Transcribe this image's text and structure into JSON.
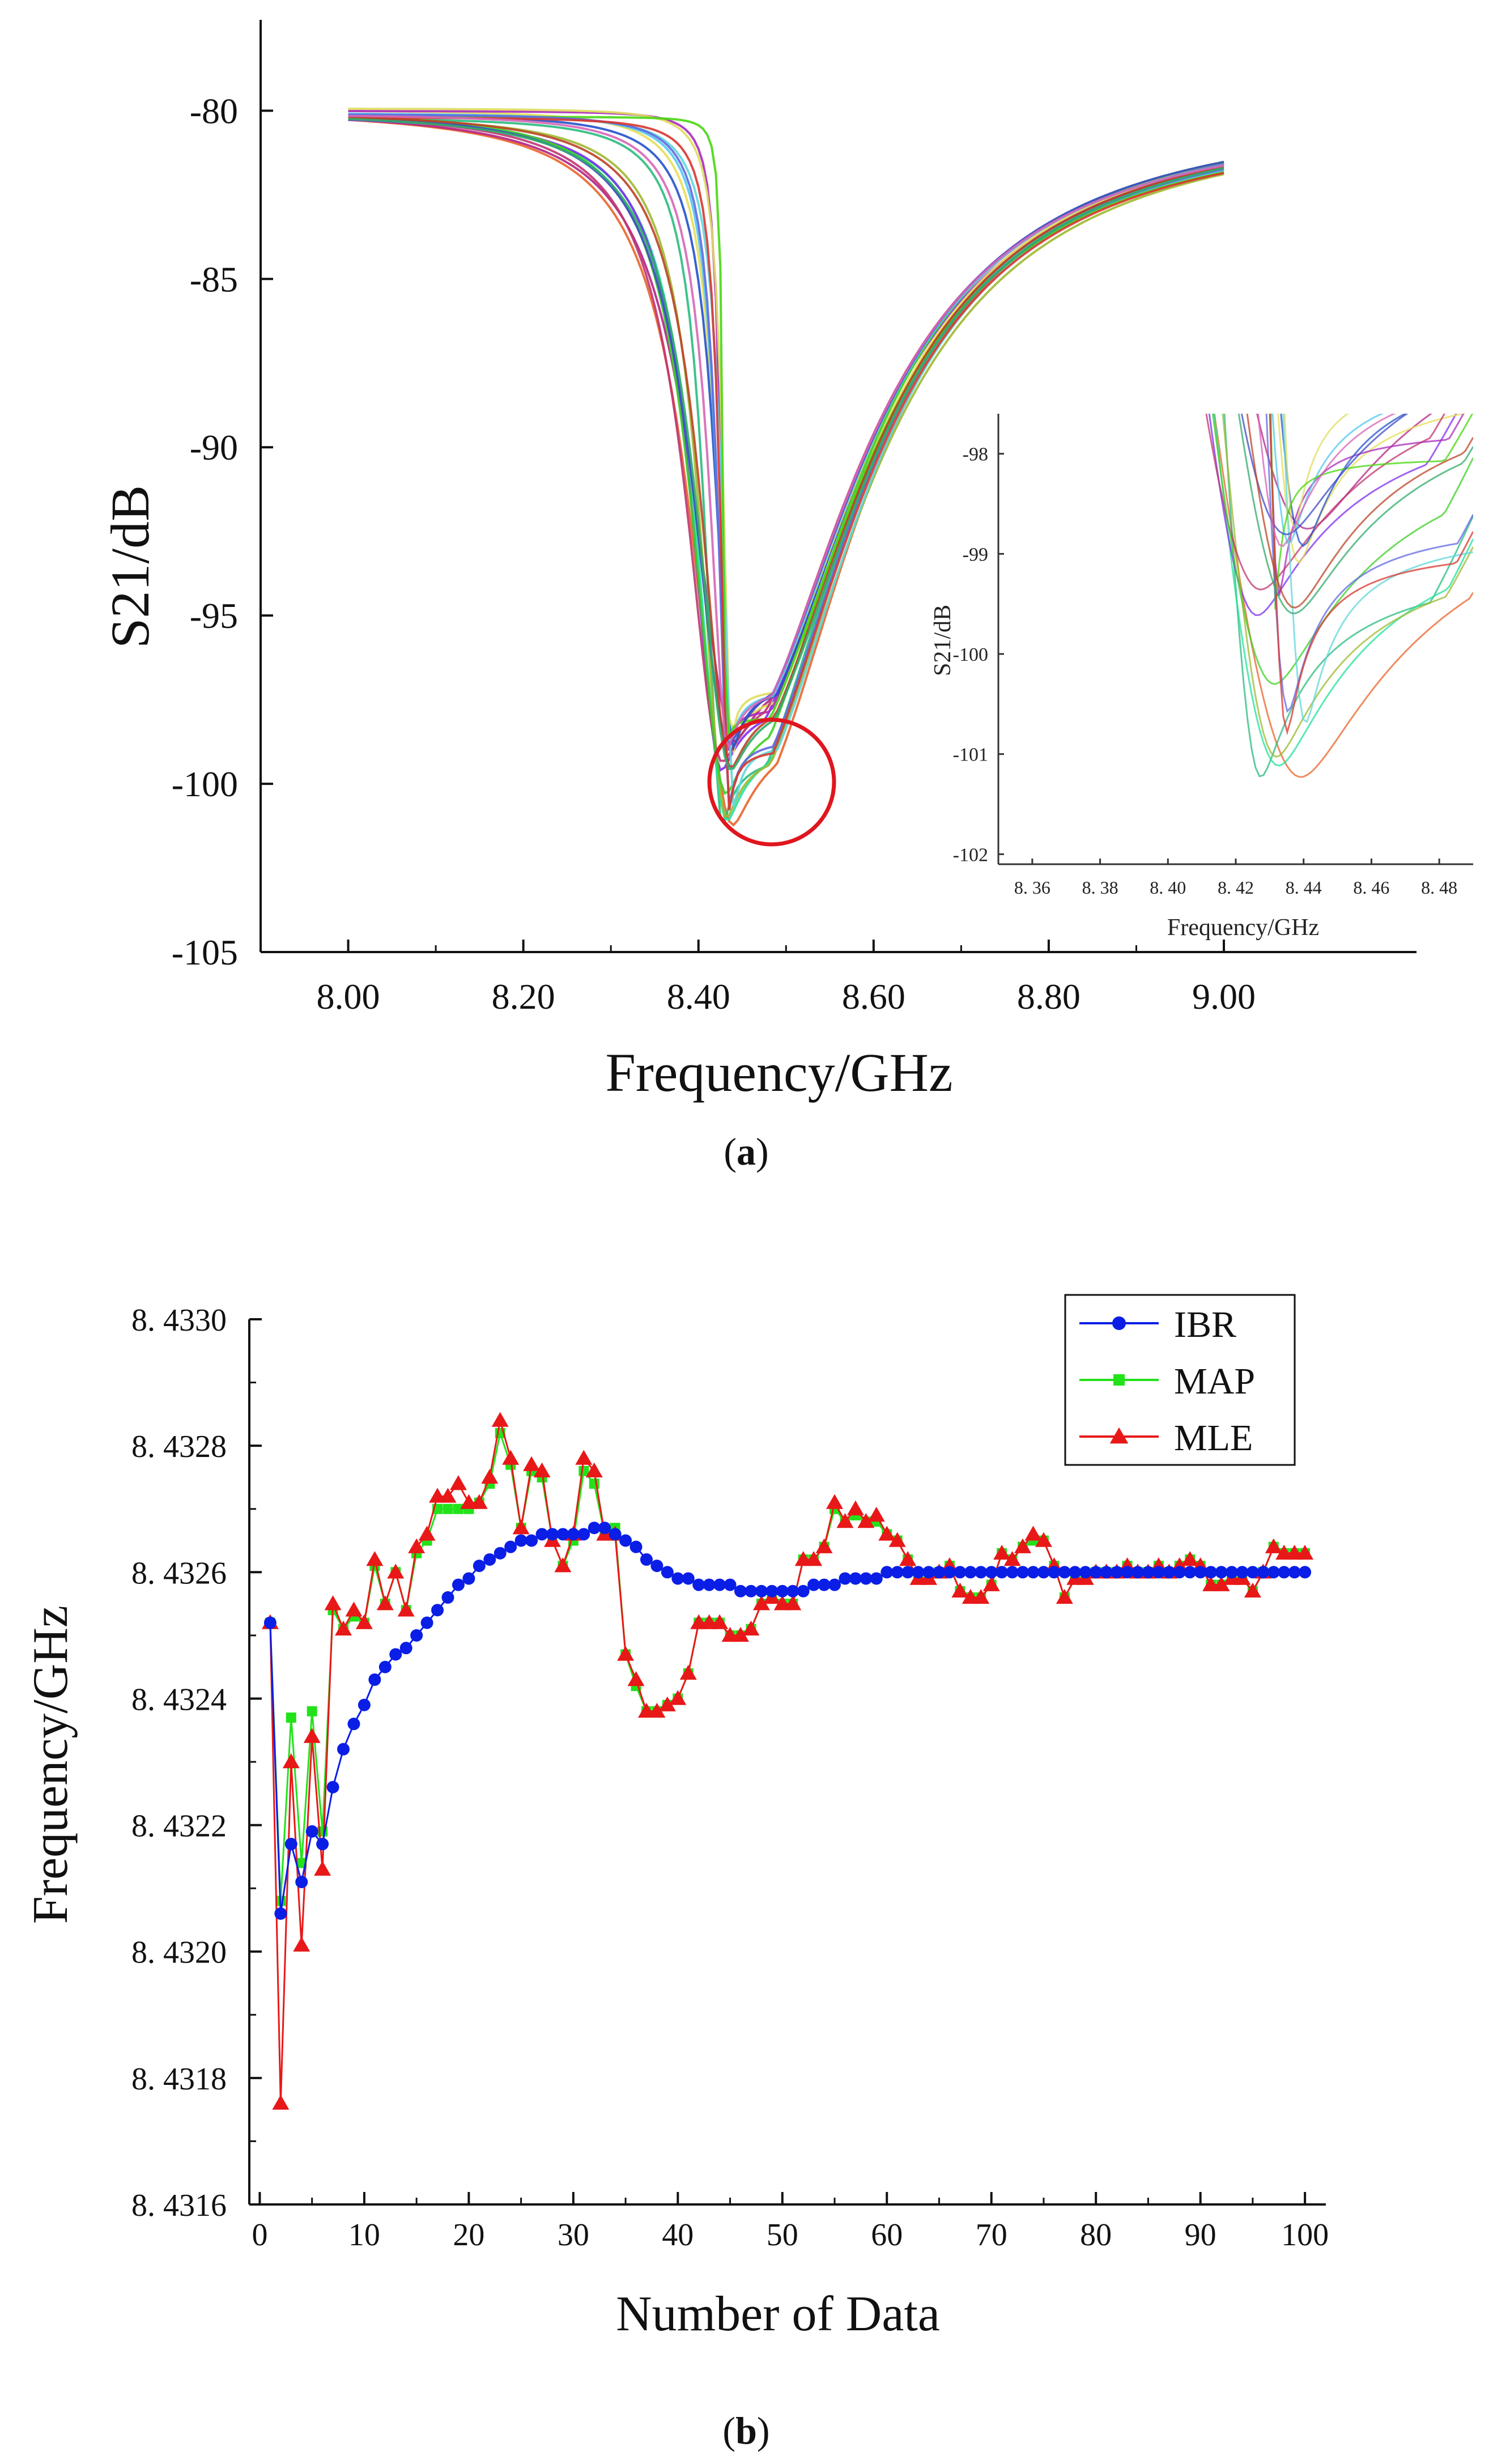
{
  "panel_a": {
    "caption": "(a)",
    "caption_prefix": "(",
    "caption_letter": "a",
    "caption_suffix": ")",
    "callout_color": "#e0161e"
  },
  "panel_b": {
    "caption": "(b)",
    "caption_prefix": "(",
    "caption_letter": "b",
    "caption_suffix": ")"
  },
  "chart_data": [
    {
      "id": "a_main",
      "type": "line",
      "title": "",
      "xlabel": "Frequency/GHz",
      "ylabel": "S21/dB",
      "xlim": [
        7.9,
        9.22
      ],
      "ylim": [
        -105,
        -77.3
      ],
      "xticks": [
        8.0,
        8.2,
        8.4,
        8.6,
        8.8,
        9.0
      ],
      "xtick_labels": [
        "8.00",
        "8.20",
        "8.40",
        "8.60",
        "8.80",
        "9.00"
      ],
      "yticks": [
        -80,
        -85,
        -90,
        -95,
        -100,
        -105
      ],
      "ytick_labels": [
        "-80",
        "-85",
        "-90",
        "-95",
        "-100",
        "-105"
      ],
      "curve_count": 100,
      "curve_model": "Lorentzian notch: S21 = A + B - B / (1 + ((f - f0)/w)^2)",
      "curve_params": {
        "f0_range": [
          8.425,
          8.442
        ],
        "min_range": [
          -101.5,
          -98.7
        ],
        "left_end_at_8_00": [
          -80.3,
          -79.6
        ],
        "right_end_at_9_00": [
          -82.4,
          -81.8
        ]
      },
      "x_range_drawn": [
        8.0,
        9.0
      ],
      "annotation": "circle around the resonance minimum near 8.43 GHz, -100 dB"
    },
    {
      "id": "a_inset",
      "type": "line",
      "title": "",
      "xlabel": "Frequency/GHz",
      "ylabel": "S21/dB",
      "xlim": [
        8.35,
        8.49
      ],
      "ylim": [
        -102.1,
        -97.6
      ],
      "xticks": [
        8.36,
        8.38,
        8.4,
        8.42,
        8.44,
        8.46,
        8.48
      ],
      "xtick_labels": [
        "8. 36",
        "8. 38",
        "8. 40",
        "8. 42",
        "8. 44",
        "8. 46",
        "8. 48"
      ],
      "yticks": [
        -98,
        -99,
        -100,
        -101,
        -102
      ],
      "ytick_labels": [
        "-98",
        "-99",
        "-100",
        "-101",
        "-102"
      ],
      "description": "zoom of the resonance minimum region of panel (a)"
    },
    {
      "id": "b",
      "type": "line",
      "title": "",
      "xlabel": "Number of Data",
      "ylabel": "Frequency/GHz",
      "xlim": [
        -1,
        102
      ],
      "ylim": [
        8.4316,
        8.433
      ],
      "xticks": [
        0,
        10,
        20,
        30,
        40,
        50,
        60,
        70,
        80,
        90,
        100
      ],
      "xtick_labels": [
        "0",
        "10",
        "20",
        "30",
        "40",
        "50",
        "60",
        "70",
        "80",
        "90",
        "100"
      ],
      "yticks": [
        8.4316,
        8.4318,
        8.432,
        8.4322,
        8.4324,
        8.4326,
        8.4328,
        8.433
      ],
      "ytick_labels": [
        "8. 4316",
        "8. 4318",
        "8. 4320",
        "8. 4322",
        "8. 4324",
        "8. 4326",
        "8. 4328",
        "8. 4330"
      ],
      "legend_position": "top-right",
      "x": [
        1,
        2,
        3,
        4,
        5,
        6,
        7,
        8,
        9,
        10,
        11,
        12,
        13,
        14,
        15,
        16,
        17,
        18,
        19,
        20,
        21,
        22,
        23,
        24,
        25,
        26,
        27,
        28,
        29,
        30,
        31,
        32,
        33,
        34,
        35,
        36,
        37,
        38,
        39,
        40,
        41,
        42,
        43,
        44,
        45,
        46,
        47,
        48,
        49,
        50,
        51,
        52,
        53,
        54,
        55,
        56,
        57,
        58,
        59,
        60,
        61,
        62,
        63,
        64,
        65,
        66,
        67,
        68,
        69,
        70,
        71,
        72,
        73,
        74,
        75,
        76,
        77,
        78,
        79,
        80,
        81,
        82,
        83,
        84,
        85,
        86,
        87,
        88,
        89,
        90,
        91,
        92,
        93,
        94,
        95,
        96,
        97,
        98,
        99,
        100
      ],
      "series": [
        {
          "name": "IBR",
          "color": "#0a1ee6",
          "marker": "circle",
          "values": [
            8.43252,
            8.43206,
            8.43217,
            8.43211,
            8.43219,
            8.43217,
            8.43226,
            8.43232,
            8.43236,
            8.43239,
            8.43243,
            8.43245,
            8.43247,
            8.43248,
            8.4325,
            8.43252,
            8.43254,
            8.43256,
            8.43258,
            8.43259,
            8.43261,
            8.43262,
            8.43263,
            8.43264,
            8.43265,
            8.43265,
            8.43266,
            8.43266,
            8.43266,
            8.43266,
            8.43266,
            8.43267,
            8.43267,
            8.43266,
            8.43265,
            8.43264,
            8.43262,
            8.43261,
            8.4326,
            8.43259,
            8.43259,
            8.43258,
            8.43258,
            8.43258,
            8.43258,
            8.43257,
            8.43257,
            8.43257,
            8.43257,
            8.43257,
            8.43257,
            8.43257,
            8.43258,
            8.43258,
            8.43258,
            8.43259,
            8.43259,
            8.43259,
            8.43259,
            8.4326,
            8.4326,
            8.4326,
            8.4326,
            8.4326,
            8.4326,
            8.4326,
            8.4326,
            8.4326,
            8.4326,
            8.4326,
            8.4326,
            8.4326,
            8.4326,
            8.4326,
            8.4326,
            8.4326,
            8.4326,
            8.4326,
            8.4326,
            8.4326,
            8.4326,
            8.4326,
            8.4326,
            8.4326,
            8.4326,
            8.4326,
            8.4326,
            8.4326,
            8.4326,
            8.4326,
            8.4326,
            8.4326,
            8.4326,
            8.4326,
            8.4326,
            8.4326,
            8.4326,
            8.4326,
            8.4326,
            8.4326
          ]
        },
        {
          "name": "MAP",
          "color": "#22e21a",
          "marker": "square",
          "values": [
            8.43252,
            8.43208,
            8.43237,
            8.43214,
            8.43238,
            8.43219,
            8.43254,
            8.43251,
            8.43253,
            8.43252,
            8.43261,
            8.43255,
            8.4326,
            8.43254,
            8.43263,
            8.43265,
            8.4327,
            8.4327,
            8.4327,
            8.4327,
            8.43271,
            8.43274,
            8.43282,
            8.43277,
            8.43267,
            8.43276,
            8.43275,
            8.43265,
            8.43261,
            8.43265,
            8.43276,
            8.43274,
            8.43266,
            8.43267,
            8.43247,
            8.43242,
            8.43238,
            8.43238,
            8.43239,
            8.4324,
            8.43244,
            8.43252,
            8.43252,
            8.43252,
            8.4325,
            8.4325,
            8.43251,
            8.43255,
            8.43256,
            8.43255,
            8.43255,
            8.43262,
            8.43262,
            8.43264,
            8.4327,
            8.43268,
            8.43269,
            8.43268,
            8.43268,
            8.43266,
            8.43265,
            8.43262,
            8.43259,
            8.43259,
            8.4326,
            8.43261,
            8.43257,
            8.43256,
            8.43256,
            8.43258,
            8.43263,
            8.43262,
            8.43264,
            8.43265,
            8.43265,
            8.43261,
            8.43256,
            8.43259,
            8.43259,
            8.4326,
            8.4326,
            8.4326,
            8.43261,
            8.4326,
            8.4326,
            8.43261,
            8.4326,
            8.43261,
            8.43262,
            8.43261,
            8.43258,
            8.43258,
            8.43259,
            8.43259,
            8.43257,
            8.4326,
            8.43264,
            8.43263,
            8.43263,
            8.43263
          ]
        },
        {
          "name": "MLE",
          "color": "#e81818",
          "marker": "triangle",
          "values": [
            8.43252,
            8.43176,
            8.4323,
            8.43201,
            8.43234,
            8.43213,
            8.43255,
            8.43251,
            8.43254,
            8.43252,
            8.43262,
            8.43255,
            8.4326,
            8.43254,
            8.43264,
            8.43266,
            8.43272,
            8.43272,
            8.43274,
            8.43271,
            8.43271,
            8.43275,
            8.43284,
            8.43278,
            8.43267,
            8.43277,
            8.43276,
            8.43265,
            8.43261,
            8.43266,
            8.43278,
            8.43276,
            8.43266,
            8.43266,
            8.43247,
            8.43243,
            8.43238,
            8.43238,
            8.43239,
            8.4324,
            8.43244,
            8.43252,
            8.43252,
            8.43252,
            8.4325,
            8.4325,
            8.43251,
            8.43255,
            8.43256,
            8.43255,
            8.43255,
            8.43262,
            8.43262,
            8.43264,
            8.43271,
            8.43268,
            8.4327,
            8.43268,
            8.43269,
            8.43266,
            8.43265,
            8.43262,
            8.43259,
            8.43259,
            8.4326,
            8.43261,
            8.43257,
            8.43256,
            8.43256,
            8.43258,
            8.43263,
            8.43262,
            8.43264,
            8.43266,
            8.43265,
            8.43261,
            8.43256,
            8.43259,
            8.43259,
            8.4326,
            8.4326,
            8.4326,
            8.43261,
            8.4326,
            8.4326,
            8.43261,
            8.4326,
            8.43261,
            8.43262,
            8.43261,
            8.43258,
            8.43258,
            8.43259,
            8.43259,
            8.43257,
            8.4326,
            8.43264,
            8.43263,
            8.43263,
            8.43263
          ]
        }
      ]
    }
  ]
}
